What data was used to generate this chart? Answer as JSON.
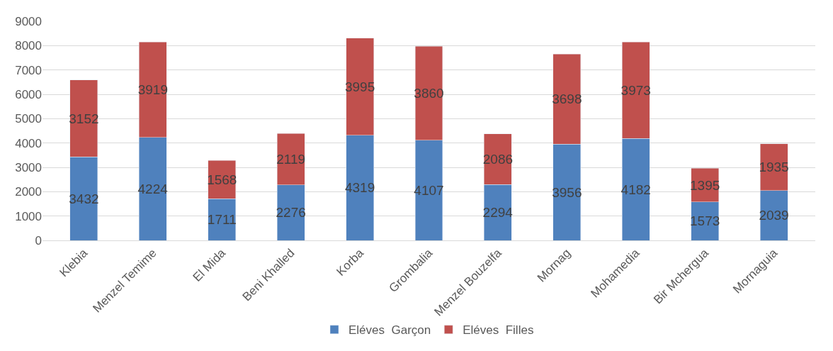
{
  "chart_data": {
    "type": "bar",
    "stacked": true,
    "categories": [
      "Klebia",
      "Menzel Temime",
      "El Mida",
      "Beni Khalled",
      "Korba",
      "Grombalia",
      "Menzel Bouzelfa",
      "Mornag",
      "Mohamedia",
      "Bir Mchergua",
      "Mornaguia"
    ],
    "series": [
      {
        "name": "Eléves  Garçon",
        "color": "#4f81bd",
        "values": [
          3432,
          4224,
          1711,
          2276,
          4319,
          4107,
          2294,
          3956,
          4182,
          1573,
          2039
        ]
      },
      {
        "name": "Eléves  Filles",
        "color": "#c0504d",
        "values": [
          3152,
          3919,
          1568,
          2119,
          3995,
          3860,
          2086,
          3698,
          3973,
          1395,
          1935
        ]
      }
    ],
    "ylim": [
      0,
      9000
    ],
    "yticks": [
      0,
      1000,
      2000,
      3000,
      4000,
      5000,
      6000,
      7000,
      8000,
      9000
    ],
    "grid": "y",
    "legend": "bottom",
    "data_labels": true
  }
}
